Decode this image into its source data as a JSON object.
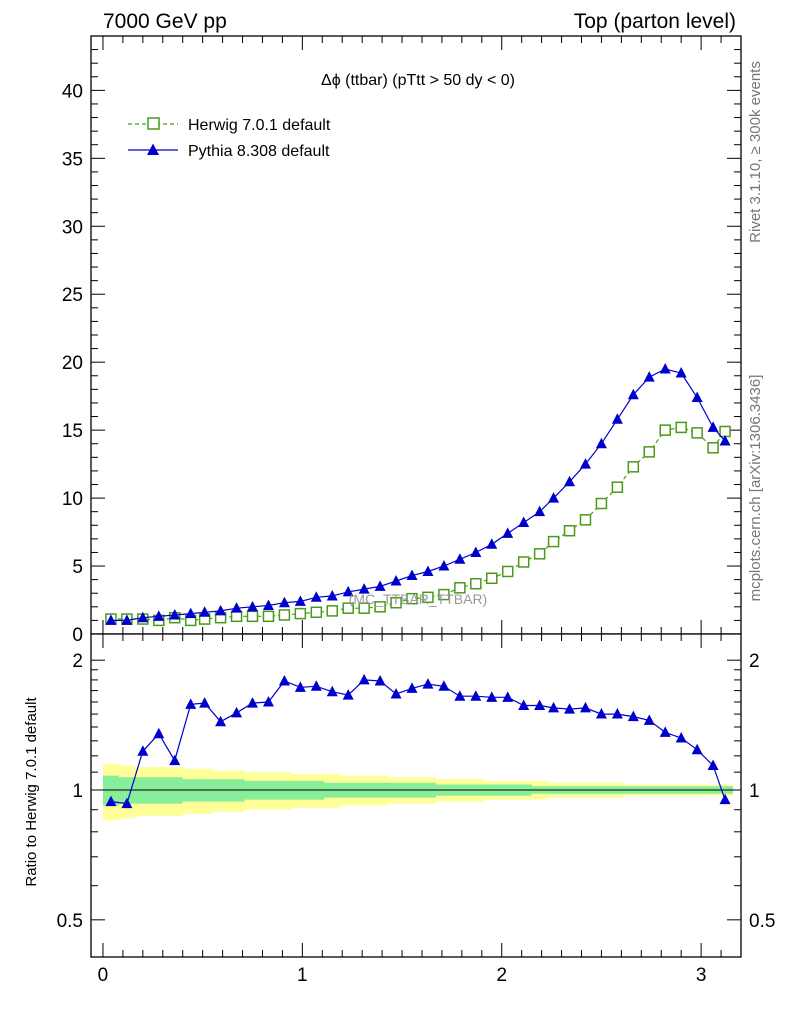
{
  "header": {
    "left": "7000 GeV pp",
    "right": "Top (parton level)"
  },
  "side_labels": {
    "rivet": "Rivet 3.1.10, ≥ 300k events",
    "mcplots": "mcplots.cern.ch [arXiv:1306.3436]"
  },
  "watermark": "(MC_TTBAR_TTBAR)",
  "colors": {
    "herwig": "#4a9a1a",
    "pythia": "#0000cc",
    "band_outer": "#ffff99",
    "band_inner": "#88ee99"
  },
  "chart_data": [
    {
      "type": "line",
      "title": "Δϕ (ttbar) (pTtt > 50 dy < 0)",
      "xlim": [
        -0.06,
        3.2
      ],
      "ylim": [
        0,
        44
      ],
      "yticks": [
        0,
        5,
        10,
        15,
        20,
        25,
        30,
        35,
        40
      ],
      "legend_position": "top-left",
      "x": [
        0.04,
        0.12,
        0.2,
        0.28,
        0.36,
        0.44,
        0.51,
        0.59,
        0.67,
        0.75,
        0.83,
        0.91,
        0.99,
        1.07,
        1.15,
        1.23,
        1.31,
        1.39,
        1.47,
        1.55,
        1.63,
        1.71,
        1.79,
        1.87,
        1.95,
        2.03,
        2.11,
        2.19,
        2.26,
        2.34,
        2.42,
        2.5,
        2.58,
        2.66,
        2.74,
        2.82,
        2.9,
        2.98,
        3.06,
        3.12
      ],
      "series": [
        {
          "name": "Herwig 7.0.1 default",
          "marker": "open-square",
          "style": "dashed",
          "values": [
            1.1,
            1.1,
            1.1,
            1.0,
            1.2,
            1.0,
            1.1,
            1.2,
            1.3,
            1.3,
            1.3,
            1.4,
            1.5,
            1.6,
            1.7,
            1.9,
            1.9,
            2.0,
            2.3,
            2.6,
            2.7,
            2.9,
            3.4,
            3.7,
            4.1,
            4.6,
            5.3,
            5.9,
            6.8,
            7.6,
            8.4,
            9.6,
            10.8,
            12.3,
            13.4,
            15.0,
            15.2,
            14.8,
            13.7,
            14.9
          ]
        },
        {
          "name": "Pythia 8.308 default",
          "marker": "filled-triangle",
          "style": "solid",
          "values": [
            1.0,
            1.0,
            1.2,
            1.3,
            1.4,
            1.5,
            1.6,
            1.7,
            1.9,
            2.0,
            2.1,
            2.3,
            2.4,
            2.7,
            2.8,
            3.1,
            3.3,
            3.5,
            3.9,
            4.3,
            4.6,
            5.0,
            5.5,
            6.0,
            6.6,
            7.4,
            8.2,
            9.0,
            10.0,
            11.2,
            12.5,
            14.0,
            15.8,
            17.6,
            18.9,
            19.5,
            19.2,
            17.4,
            15.2,
            14.2
          ]
        }
      ]
    },
    {
      "type": "line",
      "ylabel": "Ratio to Herwig 7.0.1 default",
      "xlim": [
        -0.06,
        3.2
      ],
      "xticks": [
        0,
        1,
        2,
        3
      ],
      "ylim": [
        0.41,
        2.3
      ],
      "yticks": [
        0.5,
        1,
        2
      ],
      "scale": "log",
      "reference": 1.0,
      "series": [
        {
          "name": "Pythia 8.308 default",
          "values": [
            0.94,
            0.93,
            1.23,
            1.35,
            1.17,
            1.58,
            1.59,
            1.44,
            1.51,
            1.59,
            1.6,
            1.79,
            1.73,
            1.74,
            1.69,
            1.66,
            1.8,
            1.79,
            1.67,
            1.72,
            1.76,
            1.74,
            1.65,
            1.65,
            1.64,
            1.64,
            1.57,
            1.57,
            1.55,
            1.54,
            1.55,
            1.5,
            1.5,
            1.48,
            1.45,
            1.36,
            1.32,
            1.24,
            1.14,
            0.95
          ]
        }
      ],
      "band_outer": [
        0.15,
        0.14,
        0.13,
        0.13,
        0.13,
        0.12,
        0.12,
        0.11,
        0.11,
        0.1,
        0.1,
        0.1,
        0.09,
        0.09,
        0.09,
        0.08,
        0.08,
        0.08,
        0.07,
        0.07,
        0.07,
        0.06,
        0.06,
        0.06,
        0.05,
        0.05,
        0.05,
        0.05,
        0.04,
        0.04,
        0.04,
        0.04,
        0.04,
        0.03,
        0.03,
        0.03,
        0.03,
        0.03,
        0.03,
        0.03
      ],
      "band_inner": [
        0.08,
        0.07,
        0.07,
        0.07,
        0.07,
        0.06,
        0.06,
        0.06,
        0.06,
        0.05,
        0.05,
        0.05,
        0.05,
        0.05,
        0.04,
        0.04,
        0.04,
        0.04,
        0.04,
        0.04,
        0.04,
        0.03,
        0.03,
        0.03,
        0.03,
        0.03,
        0.03,
        0.02,
        0.02,
        0.02,
        0.02,
        0.02,
        0.02,
        0.02,
        0.02,
        0.02,
        0.02,
        0.02,
        0.02,
        0.02
      ]
    }
  ]
}
